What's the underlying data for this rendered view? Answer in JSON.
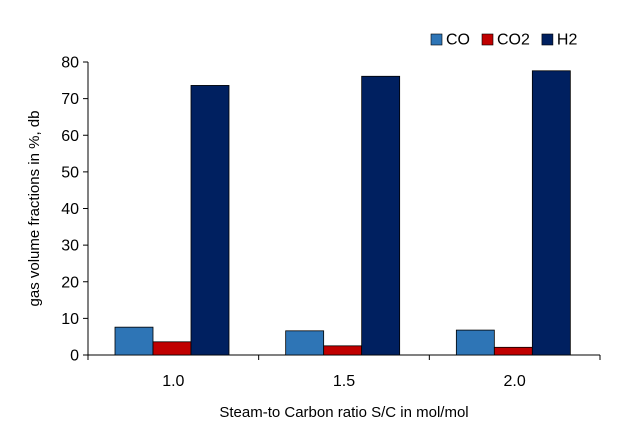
{
  "chart_data": {
    "type": "bar",
    "title": "",
    "xlabel": "Steam-to Carbon ratio S/C in mol/mol",
    "ylabel": "gas volume fractions in %, db",
    "categories": [
      "1.0",
      "1.5",
      "2.0"
    ],
    "series": [
      {
        "name": "CO",
        "color": "#2e75b6",
        "values": [
          7.6,
          6.6,
          6.8
        ]
      },
      {
        "name": "CO2",
        "color": "#c00000",
        "values": [
          3.6,
          2.5,
          2.1
        ]
      },
      {
        "name": "H2",
        "color": "#002060",
        "values": [
          73.6,
          76.1,
          77.6
        ]
      }
    ],
    "ylim": [
      0,
      80
    ],
    "yticks": [
      "0",
      "10",
      "20",
      "30",
      "40",
      "50",
      "60",
      "70",
      "80"
    ],
    "grid": false,
    "legend_position": "top-right"
  }
}
